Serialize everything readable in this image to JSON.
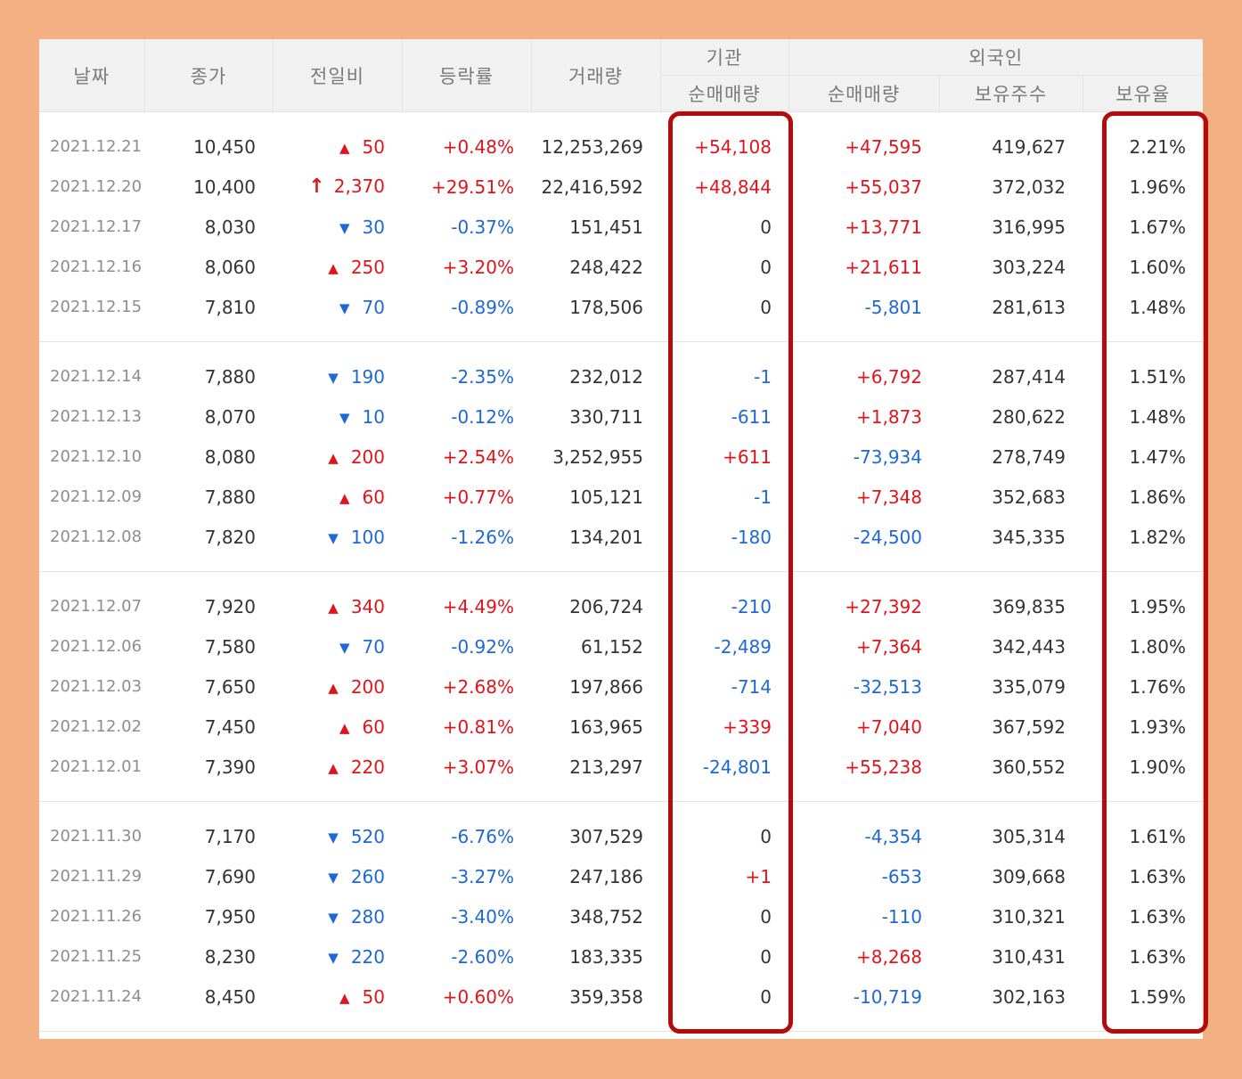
{
  "headers": {
    "date": "날짜",
    "close": "종가",
    "change": "전일비",
    "rate": "등락률",
    "volume": "거래량",
    "institution": "기관",
    "foreign": "외국인",
    "inst_net": "순매매량",
    "foreign_net": "순매매량",
    "foreign_shares": "보유주수",
    "foreign_ratio": "보유율"
  },
  "colors": {
    "up": "#e0151c",
    "down": "#1e68d6",
    "highlight": "#b40c0c",
    "border": "#f3b083"
  },
  "groups": [
    [
      {
        "date": "2021.12.21",
        "close": "10,450",
        "dir": "up",
        "change": "50",
        "rate": "+0.48%",
        "volume": "12,253,269",
        "inst": "+54,108",
        "inst_dir": "up",
        "foreign": "+47,595",
        "foreign_dir": "up",
        "shares": "419,627",
        "ratio": "2.21%"
      },
      {
        "date": "2021.12.20",
        "close": "10,400",
        "dir": "limit",
        "change": "2,370",
        "rate": "+29.51%",
        "volume": "22,416,592",
        "inst": "+48,844",
        "inst_dir": "up",
        "foreign": "+55,037",
        "foreign_dir": "up",
        "shares": "372,032",
        "ratio": "1.96%"
      },
      {
        "date": "2021.12.17",
        "close": "8,030",
        "dir": "down",
        "change": "30",
        "rate": "-0.37%",
        "volume": "151,451",
        "inst": "0",
        "inst_dir": "neu",
        "foreign": "+13,771",
        "foreign_dir": "up",
        "shares": "316,995",
        "ratio": "1.67%"
      },
      {
        "date": "2021.12.16",
        "close": "8,060",
        "dir": "up",
        "change": "250",
        "rate": "+3.20%",
        "volume": "248,422",
        "inst": "0",
        "inst_dir": "neu",
        "foreign": "+21,611",
        "foreign_dir": "up",
        "shares": "303,224",
        "ratio": "1.60%"
      },
      {
        "date": "2021.12.15",
        "close": "7,810",
        "dir": "down",
        "change": "70",
        "rate": "-0.89%",
        "volume": "178,506",
        "inst": "0",
        "inst_dir": "neu",
        "foreign": "-5,801",
        "foreign_dir": "down",
        "shares": "281,613",
        "ratio": "1.48%"
      }
    ],
    [
      {
        "date": "2021.12.14",
        "close": "7,880",
        "dir": "down",
        "change": "190",
        "rate": "-2.35%",
        "volume": "232,012",
        "inst": "-1",
        "inst_dir": "down",
        "foreign": "+6,792",
        "foreign_dir": "up",
        "shares": "287,414",
        "ratio": "1.51%"
      },
      {
        "date": "2021.12.13",
        "close": "8,070",
        "dir": "down",
        "change": "10",
        "rate": "-0.12%",
        "volume": "330,711",
        "inst": "-611",
        "inst_dir": "down",
        "foreign": "+1,873",
        "foreign_dir": "up",
        "shares": "280,622",
        "ratio": "1.48%"
      },
      {
        "date": "2021.12.10",
        "close": "8,080",
        "dir": "up",
        "change": "200",
        "rate": "+2.54%",
        "volume": "3,252,955",
        "inst": "+611",
        "inst_dir": "up",
        "foreign": "-73,934",
        "foreign_dir": "down",
        "shares": "278,749",
        "ratio": "1.47%"
      },
      {
        "date": "2021.12.09",
        "close": "7,880",
        "dir": "up",
        "change": "60",
        "rate": "+0.77%",
        "volume": "105,121",
        "inst": "-1",
        "inst_dir": "down",
        "foreign": "+7,348",
        "foreign_dir": "up",
        "shares": "352,683",
        "ratio": "1.86%"
      },
      {
        "date": "2021.12.08",
        "close": "7,820",
        "dir": "down",
        "change": "100",
        "rate": "-1.26%",
        "volume": "134,201",
        "inst": "-180",
        "inst_dir": "down",
        "foreign": "-24,500",
        "foreign_dir": "down",
        "shares": "345,335",
        "ratio": "1.82%"
      }
    ],
    [
      {
        "date": "2021.12.07",
        "close": "7,920",
        "dir": "up",
        "change": "340",
        "rate": "+4.49%",
        "volume": "206,724",
        "inst": "-210",
        "inst_dir": "down",
        "foreign": "+27,392",
        "foreign_dir": "up",
        "shares": "369,835",
        "ratio": "1.95%"
      },
      {
        "date": "2021.12.06",
        "close": "7,580",
        "dir": "down",
        "change": "70",
        "rate": "-0.92%",
        "volume": "61,152",
        "inst": "-2,489",
        "inst_dir": "down",
        "foreign": "+7,364",
        "foreign_dir": "up",
        "shares": "342,443",
        "ratio": "1.80%"
      },
      {
        "date": "2021.12.03",
        "close": "7,650",
        "dir": "up",
        "change": "200",
        "rate": "+2.68%",
        "volume": "197,866",
        "inst": "-714",
        "inst_dir": "down",
        "foreign": "-32,513",
        "foreign_dir": "down",
        "shares": "335,079",
        "ratio": "1.76%"
      },
      {
        "date": "2021.12.02",
        "close": "7,450",
        "dir": "up",
        "change": "60",
        "rate": "+0.81%",
        "volume": "163,965",
        "inst": "+339",
        "inst_dir": "up",
        "foreign": "+7,040",
        "foreign_dir": "up",
        "shares": "367,592",
        "ratio": "1.93%"
      },
      {
        "date": "2021.12.01",
        "close": "7,390",
        "dir": "up",
        "change": "220",
        "rate": "+3.07%",
        "volume": "213,297",
        "inst": "-24,801",
        "inst_dir": "down",
        "foreign": "+55,238",
        "foreign_dir": "up",
        "shares": "360,552",
        "ratio": "1.90%"
      }
    ],
    [
      {
        "date": "2021.11.30",
        "close": "7,170",
        "dir": "down",
        "change": "520",
        "rate": "-6.76%",
        "volume": "307,529",
        "inst": "0",
        "inst_dir": "neu",
        "foreign": "-4,354",
        "foreign_dir": "down",
        "shares": "305,314",
        "ratio": "1.61%"
      },
      {
        "date": "2021.11.29",
        "close": "7,690",
        "dir": "down",
        "change": "260",
        "rate": "-3.27%",
        "volume": "247,186",
        "inst": "+1",
        "inst_dir": "up",
        "foreign": "-653",
        "foreign_dir": "down",
        "shares": "309,668",
        "ratio": "1.63%"
      },
      {
        "date": "2021.11.26",
        "close": "7,950",
        "dir": "down",
        "change": "280",
        "rate": "-3.40%",
        "volume": "348,752",
        "inst": "0",
        "inst_dir": "neu",
        "foreign": "-110",
        "foreign_dir": "down",
        "shares": "310,321",
        "ratio": "1.63%"
      },
      {
        "date": "2021.11.25",
        "close": "8,230",
        "dir": "down",
        "change": "220",
        "rate": "-2.60%",
        "volume": "183,335",
        "inst": "0",
        "inst_dir": "neu",
        "foreign": "+8,268",
        "foreign_dir": "up",
        "shares": "310,431",
        "ratio": "1.63%"
      },
      {
        "date": "2021.11.24",
        "close": "8,450",
        "dir": "up",
        "change": "50",
        "rate": "+0.60%",
        "volume": "359,358",
        "inst": "0",
        "inst_dir": "neu",
        "foreign": "-10,719",
        "foreign_dir": "down",
        "shares": "302,163",
        "ratio": "1.59%"
      }
    ]
  ]
}
